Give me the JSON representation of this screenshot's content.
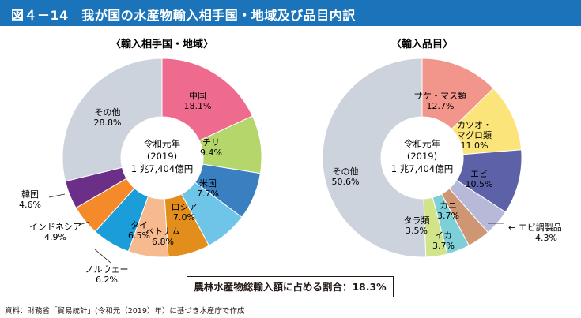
{
  "title": "図４－14　我が国の水産物輸入相手国・地域及び品目内訳",
  "ratio_note": "農林水産物総輸入額に占める割合：18.3%",
  "source_note": "資料：財務省「貿易統計」(令和元（2019）年）に基づき水産庁で作成",
  "chart_data": [
    {
      "type": "pie",
      "title": "〈輸入相手国・地域〉",
      "center_text": [
        "令和元年",
        "(2019)",
        "1 兆7,404億円"
      ],
      "unit": "%",
      "slices": [
        {
          "label": "中国",
          "value": 18.1,
          "color": "#ee6b8d"
        },
        {
          "label": "チリ",
          "value": 9.4,
          "color": "#b5d66b"
        },
        {
          "label": "米国",
          "value": 7.7,
          "color": "#3a7fc0"
        },
        {
          "label": "ロシア",
          "value": 7.0,
          "color": "#6fc5e8"
        },
        {
          "label": "ベトナム",
          "value": 6.8,
          "color": "#e38e1c"
        },
        {
          "label": "タイ",
          "value": 6.5,
          "color": "#f7b98e"
        },
        {
          "label": "ノルウェー",
          "value": 6.2,
          "color": "#1a9dd9"
        },
        {
          "label": "インドネシア",
          "value": 4.9,
          "color": "#f58a2a"
        },
        {
          "label": "韓国",
          "value": 4.6,
          "color": "#6c2f87"
        },
        {
          "label": "その他",
          "value": 28.8,
          "color": "#cdd3dc"
        }
      ]
    },
    {
      "type": "pie",
      "title": "〈輸入品目〉",
      "center_text": [
        "令和元年",
        "(2019)",
        "1 兆7,404億円"
      ],
      "unit": "%",
      "slices": [
        {
          "label": "サケ・マス類",
          "value": 12.7,
          "color": "#f2958a"
        },
        {
          "label": "カツオ・マグロ類",
          "value": 11.0,
          "color": "#fbe47a"
        },
        {
          "label": "エビ",
          "value": 10.5,
          "color": "#5d62a8"
        },
        {
          "label": "エビ調製品",
          "value": 4.3,
          "color": "#b6bad8"
        },
        {
          "label": "カニ",
          "value": 3.7,
          "color": "#cf9673"
        },
        {
          "label": "イカ",
          "value": 3.7,
          "color": "#7ed0d8"
        },
        {
          "label": "タラ類",
          "value": 3.5,
          "color": "#d2e48a"
        },
        {
          "label": "その他",
          "value": 50.6,
          "color": "#cdd3dc"
        }
      ]
    }
  ]
}
